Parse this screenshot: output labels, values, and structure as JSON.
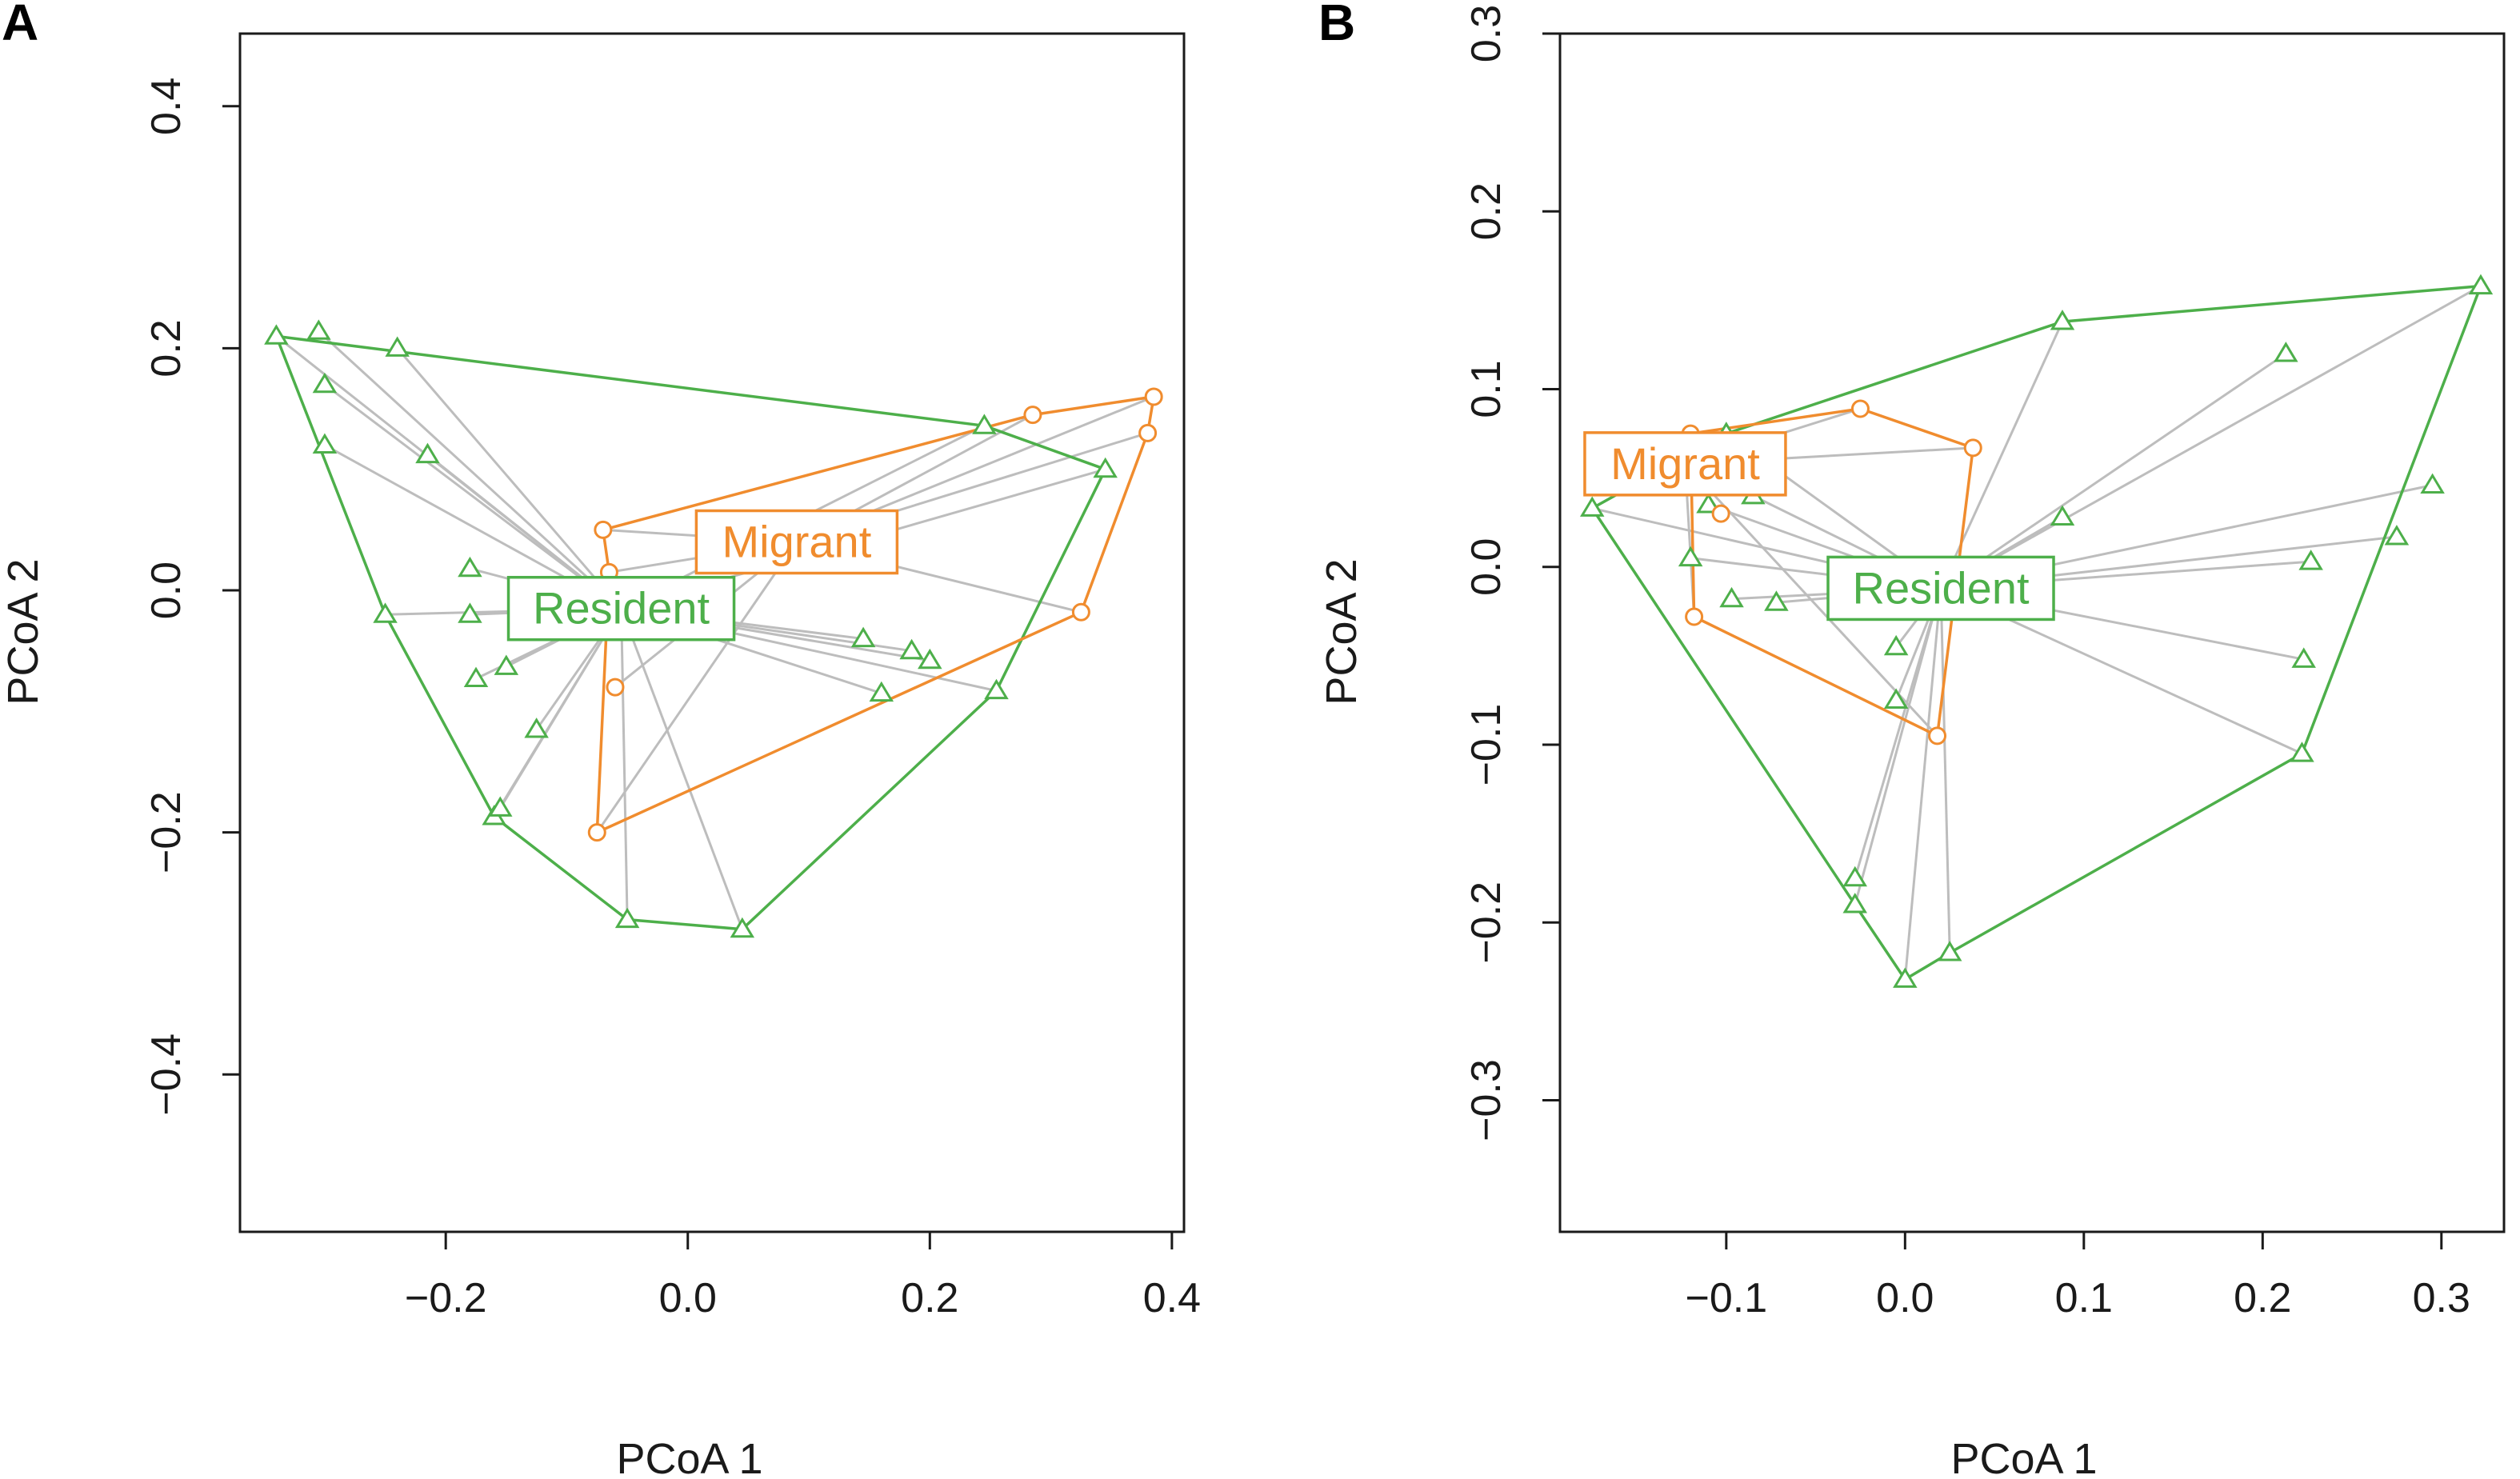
{
  "colors": {
    "resident": "#4daf4a",
    "migrant": "#f08c2e",
    "spider": "#bdbdbd",
    "axis": "#1a1a1a"
  },
  "chart_data": [
    {
      "type": "scatter",
      "panel": "A",
      "xlabel": "PCoA 1",
      "ylabel": "PCoA 2",
      "xlim": [
        -0.37,
        0.41
      ],
      "ylim": [
        -0.53,
        0.46
      ],
      "xticks": [
        -0.2,
        0.0,
        0.2,
        0.4
      ],
      "xtick_labels": [
        "−0.2",
        "0.0",
        "0.2",
        "0.4"
      ],
      "yticks": [
        -0.4,
        -0.2,
        0.0,
        0.2,
        0.4
      ],
      "ytick_labels": [
        "−0.4",
        "−0.2",
        "0.0",
        "0.2",
        "0.4"
      ],
      "series": [
        {
          "name": "Resident",
          "marker": "triangle",
          "centroid": [
            -0.055,
            -0.015
          ],
          "hull": [
            [
              -0.34,
              0.21
            ],
            [
              0.245,
              0.136
            ],
            [
              0.345,
              0.1
            ],
            [
              0.255,
              -0.083
            ],
            [
              0.045,
              -0.28
            ],
            [
              -0.05,
              -0.272
            ],
            [
              -0.16,
              -0.187
            ],
            [
              -0.25,
              -0.02
            ],
            [
              -0.34,
              0.21
            ]
          ],
          "points": [
            [
              -0.34,
              0.21
            ],
            [
              -0.305,
              0.214
            ],
            [
              -0.3,
              0.17
            ],
            [
              -0.3,
              0.12
            ],
            [
              -0.24,
              0.2
            ],
            [
              -0.215,
              0.112
            ],
            [
              -0.25,
              -0.02
            ],
            [
              -0.18,
              0.018
            ],
            [
              -0.18,
              -0.02
            ],
            [
              -0.175,
              -0.073
            ],
            [
              -0.15,
              -0.063
            ],
            [
              -0.125,
              -0.115
            ],
            [
              -0.16,
              -0.187
            ],
            [
              -0.155,
              -0.18
            ],
            [
              -0.05,
              -0.272
            ],
            [
              0.045,
              -0.28
            ],
            [
              0.145,
              -0.04
            ],
            [
              0.185,
              -0.05
            ],
            [
              0.2,
              -0.058
            ],
            [
              0.16,
              -0.085
            ],
            [
              0.245,
              0.136
            ],
            [
              0.345,
              0.1
            ],
            [
              0.255,
              -0.083
            ]
          ]
        },
        {
          "name": "Migrant",
          "marker": "circle",
          "centroid": [
            0.09,
            0.04
          ],
          "hull": [
            [
              -0.07,
              0.05
            ],
            [
              0.285,
              0.145
            ],
            [
              0.385,
              0.16
            ],
            [
              0.38,
              0.13
            ],
            [
              0.325,
              -0.018
            ],
            [
              -0.075,
              -0.2
            ],
            [
              -0.065,
              0.015
            ],
            [
              -0.07,
              0.05
            ]
          ],
          "points": [
            [
              -0.07,
              0.05
            ],
            [
              -0.065,
              0.015
            ],
            [
              -0.06,
              -0.08
            ],
            [
              -0.075,
              -0.2
            ],
            [
              0.285,
              0.145
            ],
            [
              0.385,
              0.16
            ],
            [
              0.38,
              0.13
            ],
            [
              0.325,
              -0.018
            ]
          ]
        }
      ]
    },
    {
      "type": "scatter",
      "panel": "B",
      "xlabel": "PCoA 1",
      "ylabel": "PCoA 2",
      "xlim": [
        -0.193,
        0.335
      ],
      "ylim": [
        -0.374,
        0.3
      ],
      "xticks": [
        -0.1,
        0.0,
        0.1,
        0.2,
        0.3
      ],
      "xtick_labels": [
        "−0.1",
        "0.0",
        "0.1",
        "0.2",
        "0.3"
      ],
      "yticks": [
        -0.3,
        -0.2,
        -0.1,
        0.0,
        0.1,
        0.2,
        0.3
      ],
      "ytick_labels": [
        "−0.3",
        "−0.2",
        "−0.1",
        "0.0",
        "0.1",
        "0.2",
        "0.3"
      ],
      "series": [
        {
          "name": "Resident",
          "marker": "triangle",
          "centroid": [
            0.02,
            -0.012
          ],
          "hull": [
            [
              -0.175,
              0.033
            ],
            [
              -0.1,
              0.075
            ],
            [
              0.088,
              0.138
            ],
            [
              0.322,
              0.158
            ],
            [
              0.222,
              -0.105
            ],
            [
              0.025,
              -0.217
            ],
            [
              0.0,
              -0.232
            ],
            [
              -0.028,
              -0.19
            ],
            [
              -0.175,
              0.033
            ]
          ],
          "points": [
            [
              -0.175,
              0.033
            ],
            [
              -0.1,
              0.075
            ],
            [
              0.088,
              0.138
            ],
            [
              0.322,
              0.158
            ],
            [
              -0.12,
              0.005
            ],
            [
              -0.097,
              -0.018
            ],
            [
              -0.072,
              -0.02
            ],
            [
              -0.11,
              0.035
            ],
            [
              -0.085,
              0.04
            ],
            [
              -0.005,
              -0.045
            ],
            [
              -0.005,
              -0.075
            ],
            [
              -0.028,
              -0.175
            ],
            [
              -0.028,
              -0.19
            ],
            [
              0.0,
              -0.232
            ],
            [
              0.025,
              -0.217
            ],
            [
              0.088,
              0.028
            ],
            [
              0.213,
              0.12
            ],
            [
              0.227,
              0.003
            ],
            [
              0.223,
              -0.052
            ],
            [
              0.222,
              -0.105
            ],
            [
              0.275,
              0.017
            ],
            [
              0.295,
              0.046
            ]
          ]
        },
        {
          "name": "Migrant",
          "marker": "circle",
          "centroid": [
            -0.123,
            0.058
          ],
          "hull": [
            [
              -0.12,
              0.075
            ],
            [
              -0.025,
              0.089
            ],
            [
              0.038,
              0.067
            ],
            [
              0.018,
              -0.095
            ],
            [
              -0.118,
              -0.028
            ],
            [
              -0.12,
              0.075
            ]
          ],
          "points": [
            [
              -0.12,
              0.075
            ],
            [
              -0.025,
              0.089
            ],
            [
              0.038,
              0.067
            ],
            [
              -0.103,
              0.03
            ],
            [
              -0.118,
              -0.028
            ],
            [
              0.018,
              -0.095
            ]
          ]
        }
      ]
    }
  ]
}
